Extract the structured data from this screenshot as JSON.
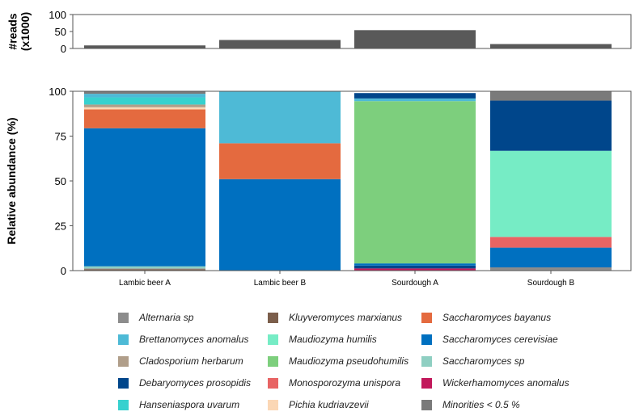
{
  "chart_data": [
    {
      "type": "bar",
      "ylabel": "#reads\n(x1000)",
      "ylabel_lines": [
        "#reads",
        "(x1000)"
      ],
      "ylim": [
        0,
        100
      ],
      "yticks": [
        0,
        50,
        100
      ],
      "categories": [
        "Lambic beer A",
        "Lambic beer B",
        "Sourdough A",
        "Sourdough B"
      ],
      "values": [
        9,
        25,
        54,
        13
      ],
      "bar_color": "#595959"
    },
    {
      "type": "bar",
      "stacked": true,
      "ylabel": "Relative abundance (%)",
      "ylim": [
        0,
        100
      ],
      "yticks": [
        0,
        25,
        50,
        75,
        100
      ],
      "categories": [
        "Lambic beer A",
        "Lambic beer B",
        "Sourdough A",
        "Sourdough B"
      ],
      "series": [
        {
          "name": "Wickerhamomyces anomalus",
          "color": "#c2185b",
          "values": [
            0,
            0,
            1.2,
            0
          ]
        },
        {
          "name": "Kluyveromyces marxianus",
          "color": "#7b5e4b",
          "values": [
            0.8,
            0,
            0,
            0
          ]
        },
        {
          "name": "Debaryomyces prosopidis",
          "color": "#00468b",
          "values": [
            0,
            0,
            1.6,
            0
          ]
        },
        {
          "name": "Alternaria sp",
          "color": "#8c8c8c",
          "values": [
            0.4,
            0,
            0,
            1.8
          ]
        },
        {
          "name": "Saccharomyces sp",
          "color": "#8fcfc2",
          "values": [
            1.2,
            0,
            0,
            0
          ]
        },
        {
          "name": "Saccharomyces cerevisiae",
          "color": "#0070c0",
          "values": [
            77,
            51,
            1.2,
            11
          ]
        },
        {
          "name": "Monosporozyma unispora",
          "color": "#e86464",
          "values": [
            0,
            0,
            0,
            6
          ]
        },
        {
          "name": "Maudiozyma humilis",
          "color": "#76ecc5",
          "values": [
            0,
            0,
            0,
            48
          ]
        },
        {
          "name": "Maudiozyma pseudohumilis",
          "color": "#7dcf7d",
          "values": [
            0,
            0,
            90.5,
            0
          ]
        },
        {
          "name": "Saccharomyces bayanus",
          "color": "#e46a3f",
          "values": [
            10.5,
            20,
            0,
            0
          ]
        },
        {
          "name": "Pichia kudriavzevii",
          "color": "#fbd7b5",
          "values": [
            1.2,
            0,
            0,
            0
          ]
        },
        {
          "name": "Cladosporium herbarum",
          "color": "#b09e8a",
          "values": [
            1.5,
            0,
            0,
            0
          ]
        },
        {
          "name": "Hanseniaspora uvarum",
          "color": "#37d1cf",
          "values": [
            4,
            0,
            0,
            0
          ]
        },
        {
          "name": "Brettanomyces anomalus",
          "color": "#4ebad6",
          "values": [
            2,
            29,
            1.5,
            0
          ]
        },
        {
          "name": "Debaryomyces prosopidis",
          "color": "#00468b",
          "values": [
            0,
            0,
            3,
            28
          ]
        },
        {
          "name": "Minorities < 0.5 %",
          "color": "#7a7a7a",
          "values": [
            1.4,
            0,
            0,
            5.2
          ]
        }
      ]
    }
  ],
  "legend": [
    {
      "label": "Alternaria sp",
      "color": "#8c8c8c"
    },
    {
      "label": "Brettanomyces anomalus",
      "color": "#4ebad6"
    },
    {
      "label": "Cladosporium herbarum",
      "color": "#b09e8a"
    },
    {
      "label": "Debaryomyces prosopidis",
      "color": "#00468b"
    },
    {
      "label": "Hanseniaspora uvarum",
      "color": "#37d1cf"
    },
    {
      "label": "Kluyveromyces marxianus",
      "color": "#7b5e4b"
    },
    {
      "label": "Maudiozyma humilis",
      "color": "#76ecc5"
    },
    {
      "label": "Maudiozyma pseudohumilis",
      "color": "#7dcf7d"
    },
    {
      "label": "Monosporozyma unispora",
      "color": "#e86464"
    },
    {
      "label": "Pichia kudriavzevii",
      "color": "#fbd7b5"
    },
    {
      "label": "Saccharomyces bayanus",
      "color": "#e46a3f"
    },
    {
      "label": "Saccharomyces cerevisiae",
      "color": "#0070c0"
    },
    {
      "label": "Saccharomyces sp",
      "color": "#8fcfc2"
    },
    {
      "label": "Wickerhamomyces anomalus",
      "color": "#c2185b"
    },
    {
      "label": "Minorities < 0.5 %",
      "color": "#7a7a7a"
    }
  ]
}
